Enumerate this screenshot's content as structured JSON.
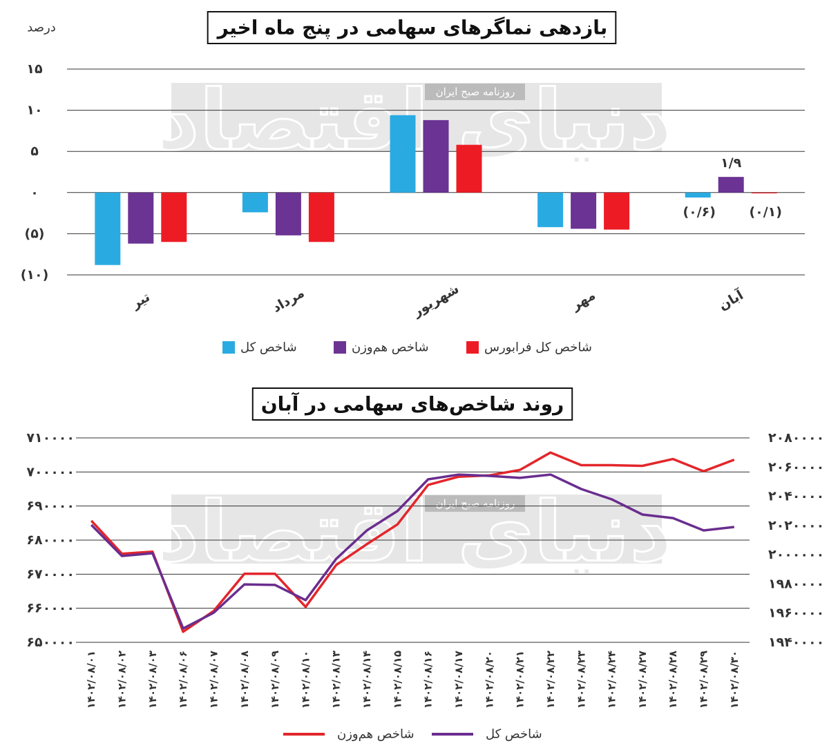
{
  "chart_data": [
    {
      "type": "bar",
      "title": "بازدهی نماگرهای سهامی در پنج ماه اخیر",
      "y_label": "درصد",
      "watermark": "دنیای اقتصاد",
      "watermark_subtitle": "روزنامه صبح ایران",
      "categories": [
        "تیر",
        "مرداد",
        "شهریور",
        "مهر",
        "آبان"
      ],
      "series": [
        {
          "name": "شاخص کل",
          "color": "#29abe2",
          "values": [
            -8.8,
            -2.4,
            9.4,
            -4.2,
            -0.6
          ],
          "value_labels": [
            null,
            null,
            null,
            null,
            "(۰/۶)"
          ]
        },
        {
          "name": "شاخص هم‌وزن",
          "color": "#6b3394",
          "values": [
            -6.2,
            -5.2,
            8.8,
            -4.4,
            1.9
          ],
          "value_labels": [
            null,
            null,
            null,
            null,
            "۱/۹"
          ]
        },
        {
          "name": "شاخص کل فرابورس",
          "color": "#ed1c24",
          "values": [
            -6.0,
            -6.0,
            5.8,
            -4.5,
            -0.1
          ],
          "value_labels": [
            null,
            null,
            null,
            null,
            "(۰/۱)"
          ]
        }
      ],
      "ylim": [
        -10,
        15
      ],
      "yticks": [
        {
          "value": 15,
          "label": "۱۵"
        },
        {
          "value": 10,
          "label": "۱۰"
        },
        {
          "value": 5,
          "label": "۵"
        },
        {
          "value": 0,
          "label": "۰"
        },
        {
          "value": -5,
          "label": "(۵)"
        },
        {
          "value": -10,
          "label": "(۱۰)"
        }
      ],
      "grid": true,
      "negative_color": "#c1121f"
    },
    {
      "type": "line",
      "title": "روند شاخص‌های سهامی در آبان",
      "watermark": "دنیای اقتصاد",
      "watermark_subtitle": "روزنامه صبح ایران",
      "categories": [
        "۱۴۰۲/۰۸/۰۱",
        "۱۴۰۲/۰۸/۰۲",
        "۱۴۰۲/۰۸/۰۳",
        "۱۴۰۲/۰۸/۰۶",
        "۱۴۰۲/۰۸/۰۷",
        "۱۴۰۲/۰۸/۰۸",
        "۱۴۰۲/۰۸/۰۹",
        "۱۴۰۲/۰۸/۱۰",
        "۱۴۰۲/۰۸/۱۳",
        "۱۴۰۲/۰۸/۱۴",
        "۱۴۰۲/۰۸/۱۵",
        "۱۴۰۲/۰۸/۱۶",
        "۱۴۰۲/۰۸/۱۷",
        "۱۴۰۲/۰۸/۲۰",
        "۱۴۰۲/۰۸/۲۱",
        "۱۴۰۲/۰۸/۲۲",
        "۱۴۰۲/۰۸/۲۳",
        "۱۴۰۲/۰۸/۲۴",
        "۱۴۰۲/۰۸/۲۷",
        "۱۴۰۲/۰۸/۲۸",
        "۱۴۰۲/۰۸/۲۹",
        "۱۴۰۲/۰۸/۳۰"
      ],
      "series": [
        {
          "name": "شاخص هم‌وزن",
          "color": "#e3262b",
          "values": [
            685700,
            676000,
            676600,
            653100,
            659200,
            670100,
            670100,
            660400,
            672700,
            678800,
            684600,
            696200,
            698600,
            699000,
            700600,
            705700,
            702000,
            702000,
            701800,
            703800,
            700200,
            703600
          ]
        },
        {
          "name": "شاخص کل",
          "color": "#6a2d8f",
          "axis": "y2",
          "values": [
            2020400,
            1999100,
            2001000,
            1949500,
            1960300,
            1979700,
            1979300,
            1968900,
            1997200,
            2016600,
            2029900,
            2051600,
            2054900,
            2054000,
            2052600,
            2054900,
            2045000,
            2037900,
            2027500,
            2025100,
            2016600,
            2019000
          ]
        }
      ],
      "ylim": [
        650000,
        710000
      ],
      "yticks": [
        {
          "value": 710000,
          "label": "۷۱۰۰۰۰"
        },
        {
          "value": 700000,
          "label": "۷۰۰۰۰۰"
        },
        {
          "value": 690000,
          "label": "۶۹۰۰۰۰"
        },
        {
          "value": 680000,
          "label": "۶۸۰۰۰۰"
        },
        {
          "value": 670000,
          "label": "۶۷۰۰۰۰"
        },
        {
          "value": 660000,
          "label": "۶۶۰۰۰۰"
        },
        {
          "value": 650000,
          "label": "۶۵۰۰۰۰"
        }
      ],
      "y2lim": [
        1940000,
        2080000
      ],
      "y2ticks": [
        {
          "value": 2080000,
          "label": "۲۰۸۰۰۰۰"
        },
        {
          "value": 2060000,
          "label": "۲۰۶۰۰۰۰"
        },
        {
          "value": 2040000,
          "label": "۲۰۴۰۰۰۰"
        },
        {
          "value": 2020000,
          "label": "۲۰۲۰۰۰۰"
        },
        {
          "value": 2000000,
          "label": "۲۰۰۰۰۰۰"
        },
        {
          "value": 1980000,
          "label": "۱۹۸۰۰۰۰"
        },
        {
          "value": 1960000,
          "label": "۱۹۶۰۰۰۰"
        },
        {
          "value": 1940000,
          "label": "۱۹۴۰۰۰۰"
        }
      ],
      "grid": true
    }
  ]
}
